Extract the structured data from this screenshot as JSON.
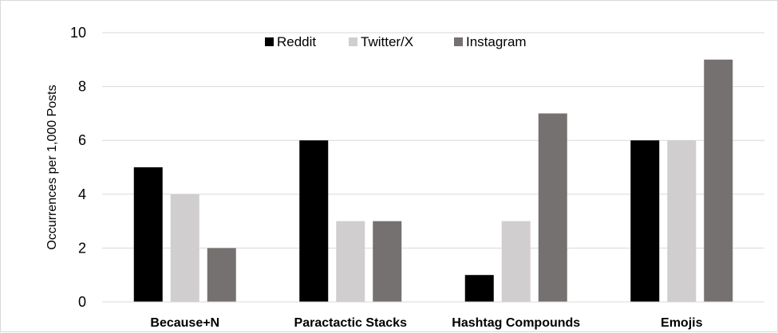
{
  "chart_data": {
    "type": "bar",
    "title": "",
    "xlabel": "",
    "ylabel": "Occurrences per 1,000 Posts",
    "ylim": [
      0,
      10
    ],
    "yticks": [
      "0",
      "2",
      "4",
      "6",
      "8",
      "10"
    ],
    "categories": [
      "Because+N",
      "Paractactic Stacks",
      "Hashtag Compounds",
      "Emojis"
    ],
    "series": [
      {
        "name": "Reddit",
        "color": "#000000",
        "values": [
          5,
          6,
          1,
          6
        ]
      },
      {
        "name": "Twitter/X",
        "color": "#d0cece",
        "values": [
          4,
          3,
          3,
          6
        ]
      },
      {
        "name": "Instagram",
        "color": "#767171",
        "values": [
          2,
          3,
          7,
          9
        ]
      }
    ],
    "grid": true,
    "legend": "top-center"
  }
}
